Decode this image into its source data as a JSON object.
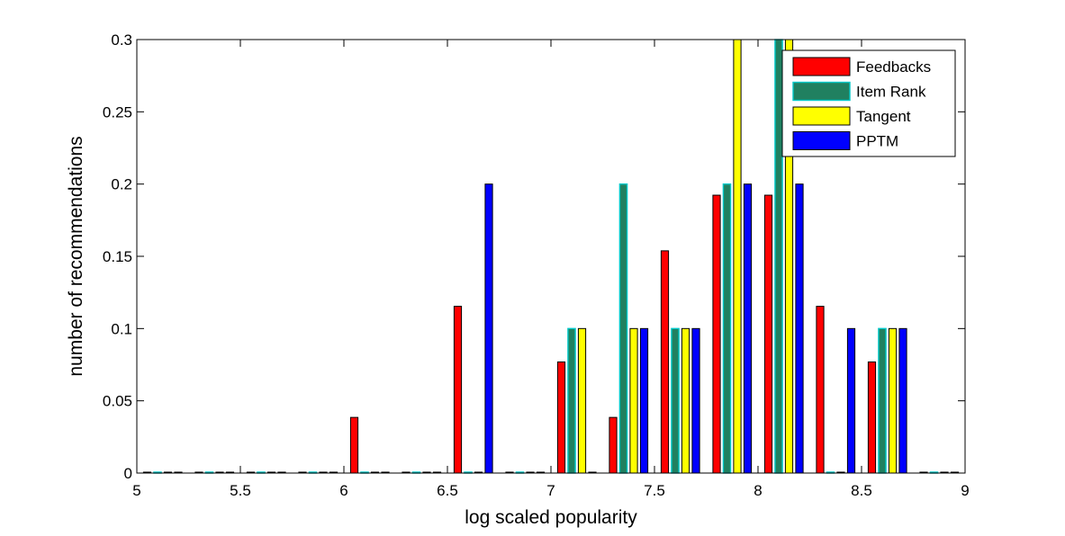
{
  "chart_data": {
    "type": "bar",
    "title": "",
    "xlabel": "log scaled popularity",
    "ylabel": "number of recommendations",
    "xlim": [
      5,
      9
    ],
    "ylim": [
      0,
      0.3
    ],
    "xticks": [
      5,
      5.5,
      6,
      6.5,
      7,
      7.5,
      8,
      8.5,
      9
    ],
    "xtick_labels": [
      "5",
      "5.5",
      "6",
      "6.5",
      "7",
      "7.5",
      "8",
      "8.5",
      "9"
    ],
    "yticks": [
      0,
      0.05,
      0.1,
      0.15,
      0.2,
      0.25,
      0.3
    ],
    "ytick_labels": [
      "0",
      "0.05",
      "0.1",
      "0.15",
      "0.2",
      "0.25",
      "0.3"
    ],
    "grid": false,
    "legend_position": "top-right",
    "x": [
      5.125,
      5.375,
      5.625,
      5.875,
      6.125,
      6.375,
      6.625,
      6.875,
      7.125,
      7.375,
      7.625,
      7.875,
      8.125,
      8.375,
      8.625,
      8.875
    ],
    "series": [
      {
        "name": "Feedbacks",
        "color": "#ff0000",
        "values": [
          0,
          0,
          0,
          0,
          0.0385,
          0,
          0.1154,
          0,
          0.0769,
          0.0385,
          0.1538,
          0.1923,
          0.1923,
          0.1154,
          0.0769,
          0
        ]
      },
      {
        "name": "Item Rank",
        "color": "#208060",
        "edge": "#00c8c8",
        "values": [
          0,
          0,
          0,
          0,
          0,
          0,
          0,
          0,
          0.1,
          0.2,
          0.1,
          0.2,
          0.3,
          0,
          0.1,
          0
        ]
      },
      {
        "name": "Tangent",
        "color": "#ffff00",
        "values": [
          0,
          0,
          0,
          0,
          0,
          0,
          0,
          0,
          0.1,
          0.1,
          0.1,
          0.3,
          0.3,
          0,
          0.1,
          0
        ]
      },
      {
        "name": "PPTM",
        "color": "#0000ff",
        "values": [
          0,
          0,
          0,
          0,
          0,
          0,
          0.2,
          0,
          0,
          0.1,
          0.1,
          0.2,
          0.2,
          0.1,
          0.1,
          0
        ]
      }
    ]
  }
}
